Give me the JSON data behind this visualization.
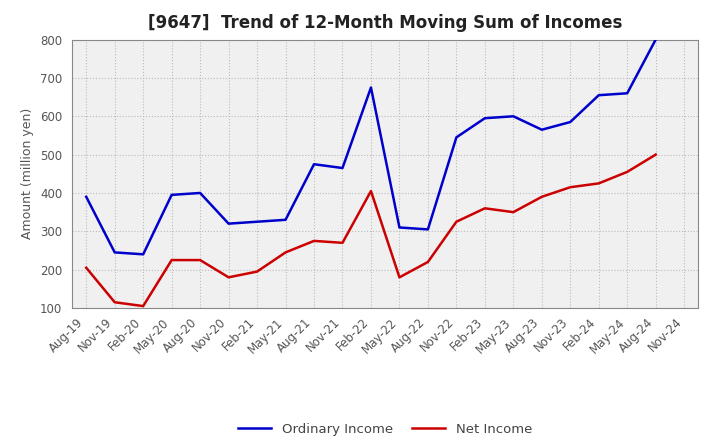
{
  "title": "[9647]  Trend of 12-Month Moving Sum of Incomes",
  "ylabel": "Amount (million yen)",
  "ylim": [
    100,
    800
  ],
  "yticks": [
    100,
    200,
    300,
    400,
    500,
    600,
    700,
    800
  ],
  "x_labels": [
    "Aug-19",
    "Nov-19",
    "Feb-20",
    "May-20",
    "Aug-20",
    "Nov-20",
    "Feb-21",
    "May-21",
    "Aug-21",
    "Nov-21",
    "Feb-22",
    "May-22",
    "Aug-22",
    "Nov-22",
    "Feb-23",
    "May-23",
    "Aug-23",
    "Nov-23",
    "Feb-24",
    "May-24",
    "Aug-24",
    "Nov-24"
  ],
  "ordinary_income": [
    390,
    245,
    240,
    395,
    400,
    320,
    325,
    330,
    475,
    465,
    675,
    310,
    305,
    545,
    595,
    600,
    565,
    585,
    655,
    660,
    800,
    null
  ],
  "net_income": [
    205,
    115,
    105,
    225,
    225,
    180,
    195,
    245,
    275,
    270,
    405,
    180,
    220,
    325,
    360,
    350,
    390,
    415,
    425,
    455,
    500,
    null
  ],
  "ordinary_color": "#0000cc",
  "net_color": "#cc0000",
  "background_color": "#ffffff",
  "plot_bg_color": "#f0f0f0",
  "grid_color": "#bbbbbb",
  "title_fontsize": 12,
  "label_fontsize": 9,
  "tick_fontsize": 8.5,
  "legend_fontsize": 9.5
}
